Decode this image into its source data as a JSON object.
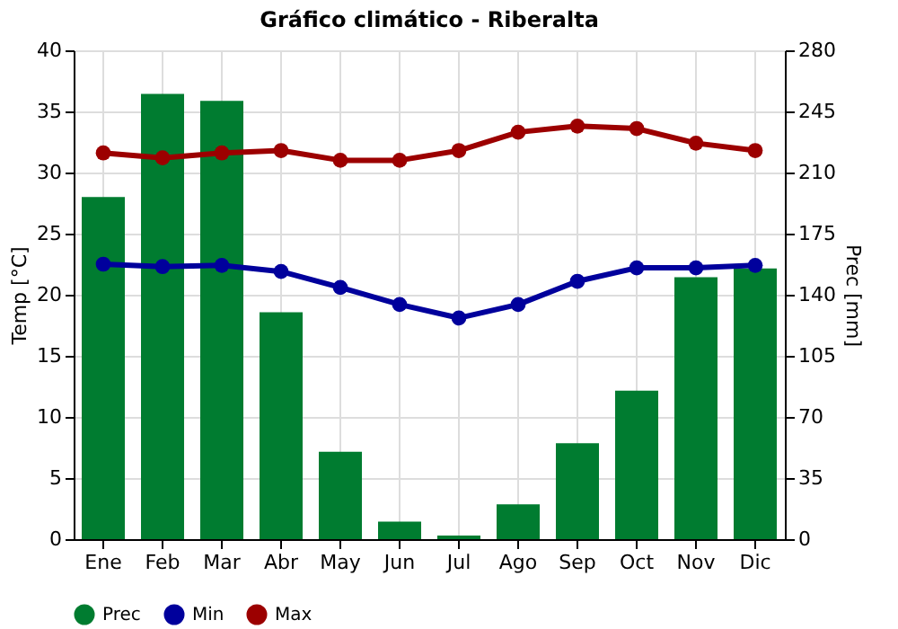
{
  "chart_data": {
    "type": "bar",
    "title": "Gráfico climático - Riberalta",
    "ylabel": "Temp [°C]",
    "y2label": "Prec [mm]",
    "categories": [
      "Ene",
      "Feb",
      "Mar",
      "Abr",
      "May",
      "Jun",
      "Jul",
      "Ago",
      "Sep",
      "Oct",
      "Nov",
      "Dic"
    ],
    "series": [
      {
        "name": "Prec",
        "axis": "y2",
        "color": "#007c30",
        "values": [
          196,
          255,
          251,
          130,
          50,
          10,
          2,
          20,
          55,
          85,
          150,
          155
        ]
      },
      {
        "name": "Min",
        "type": "line",
        "color": "#00009c",
        "values": [
          22.5,
          22.3,
          22.4,
          21.9,
          20.6,
          19.2,
          18.1,
          19.2,
          21.1,
          22.2,
          22.2,
          22.4
        ]
      },
      {
        "name": "Max",
        "type": "line",
        "color": "#9c0000",
        "values": [
          31.6,
          31.2,
          31.6,
          31.8,
          31.0,
          31.0,
          31.8,
          33.3,
          33.8,
          33.6,
          32.4,
          31.8
        ]
      }
    ],
    "ylim": [
      0,
      40
    ],
    "yticks": [
      0,
      5,
      10,
      15,
      20,
      25,
      30,
      35,
      40
    ],
    "y2lim": [
      0,
      280
    ],
    "y2ticks": [
      0,
      35,
      70,
      105,
      140,
      175,
      210,
      245,
      280
    ],
    "grid": true,
    "legend": "bottom",
    "marker": "circle",
    "line_style": "solid"
  }
}
